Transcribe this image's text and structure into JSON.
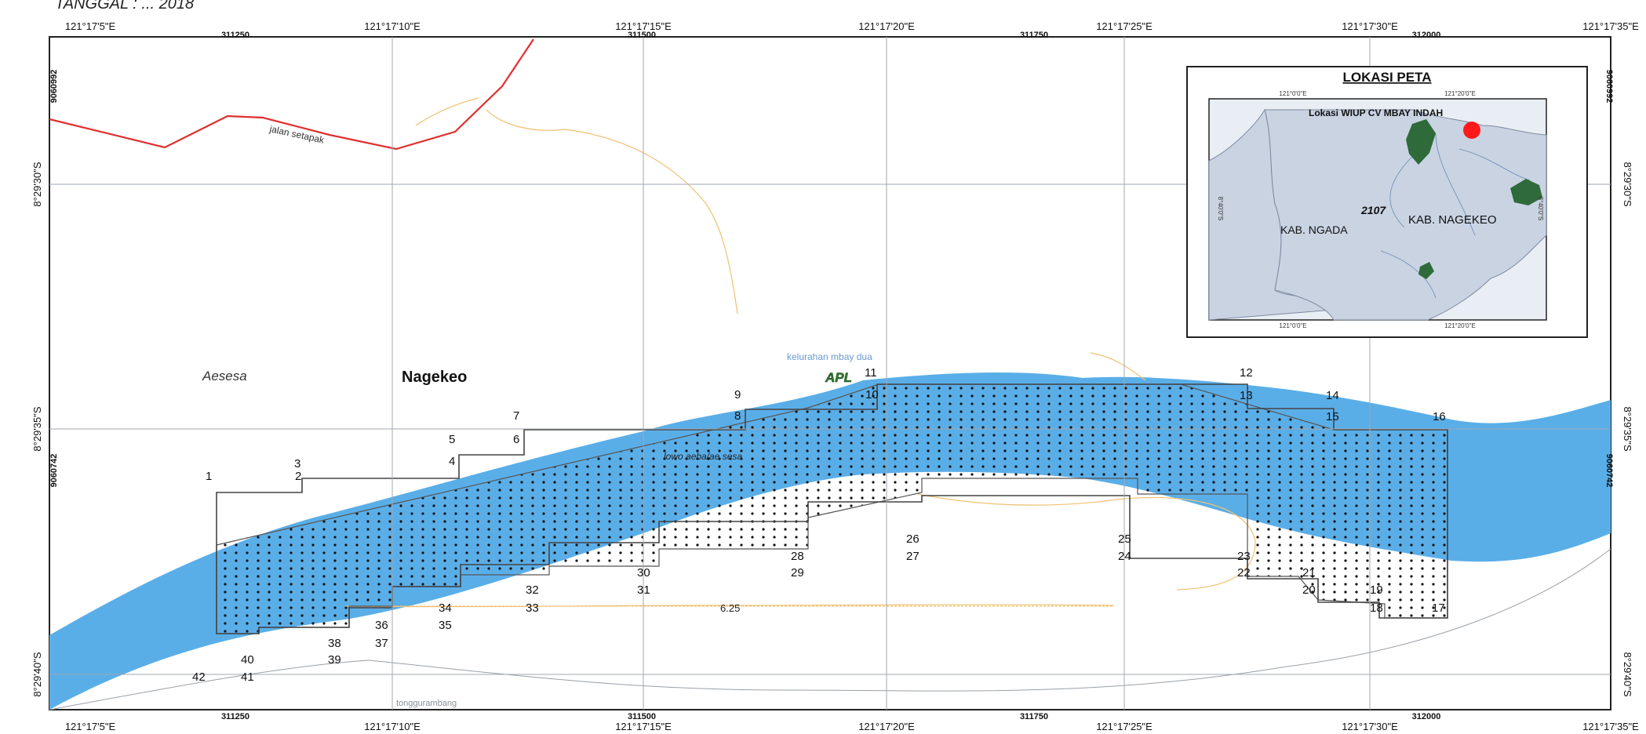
{
  "header_note": "TANGGAL : ... 2018",
  "graticule": {
    "lon_labels": [
      "121°17'5\"E",
      "121°17'10\"E",
      "121°17'15\"E",
      "121°17'20\"E",
      "121°17'25\"E",
      "121°17'30\"E",
      "121°17'35\"E"
    ],
    "lat_labels": [
      "8°29'30\"S",
      "8°29'35\"S",
      "8°29'40\"S"
    ],
    "utm_east_top": [
      "311250",
      "311500",
      "311750",
      "312000"
    ],
    "utm_east_bottom": [
      "311250",
      "311500",
      "311750",
      "312000"
    ],
    "utm_north": [
      "9060992",
      "9060742"
    ]
  },
  "labels": {
    "road": "jalan setapak",
    "aesesa": "Aesesa",
    "nagekeo": "Nagekeo",
    "kelurahan": "kelurahan mbay dua",
    "apl": "APL",
    "river": "lowo aeba/ae sesa",
    "contour": "6.25",
    "tonggurambang": "tonggurambang"
  },
  "vertices": [
    "1",
    "2",
    "3",
    "4",
    "5",
    "6",
    "7",
    "8",
    "9",
    "10",
    "11",
    "12",
    "13",
    "14",
    "15",
    "16",
    "17",
    "18",
    "19",
    "20",
    "21",
    "22",
    "23",
    "24",
    "25",
    "26",
    "27",
    "28",
    "29",
    "30",
    "31",
    "32",
    "33",
    "34",
    "35",
    "36",
    "37",
    "38",
    "39",
    "40",
    "41",
    "42"
  ],
  "inset": {
    "title": "LOKASI PETA",
    "wiup_label": "Lokasi WIUP CV MBAY INDAH",
    "ngada": "KAB. NGADA",
    "nagekeo": "KAB. NAGEKEO",
    "code": "2107",
    "top_lons": [
      "121°0'0\"E",
      "121°20'0\"E"
    ],
    "bottom_lons": [
      "121°0'0\"E",
      "121°20'0\"E"
    ],
    "side_lats": [
      "8°40'0\"S",
      "8°40'0\"S"
    ]
  },
  "colors": {
    "river": "#5aaee8",
    "road": "#e03030",
    "boundary": "#f0c070",
    "frame": "#222222",
    "inset_land": "#c9d3e2",
    "inset_sea": "#e8eef4",
    "forest": "#2e6a3a",
    "marker": "#ff1a1a"
  }
}
